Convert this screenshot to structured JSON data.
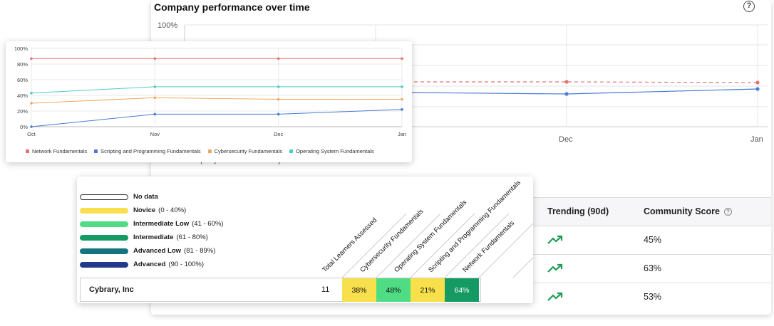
{
  "back_panel": {
    "title": "Company performance over time",
    "y_top_label": "100%",
    "x_labels": [
      "Dec",
      "Jan"
    ],
    "legend_partial": "Company Score   Community Score",
    "table": {
      "headers": {
        "trending": "Trending (90d)",
        "community_score": "Community Score"
      },
      "rows": [
        {
          "community_score": "45%"
        },
        {
          "community_score": "63%"
        },
        {
          "community_score": "53%"
        }
      ]
    }
  },
  "chart_data": {
    "type": "line",
    "categories": [
      "Oct",
      "Nov",
      "Dec",
      "Jan"
    ],
    "ylim": [
      0,
      100
    ],
    "y_ticks": [
      "0%",
      "20%",
      "40%",
      "60%",
      "80%",
      "100%"
    ],
    "series": [
      {
        "name": "Network Fundamentals",
        "color": "#e57373",
        "values": [
          87,
          87,
          87,
          87
        ]
      },
      {
        "name": "Scripting and Programming Fundamentals",
        "color": "#4a7bd0",
        "values": [
          0,
          16,
          16,
          22
        ]
      },
      {
        "name": "Cybersecurity Fundamentals",
        "color": "#f0a860",
        "values": [
          30,
          37,
          35,
          35
        ]
      },
      {
        "name": "Operating System Fundamentals",
        "color": "#4ecdc4",
        "values": [
          43,
          51,
          51,
          51
        ]
      }
    ]
  },
  "heatmap": {
    "key": [
      {
        "name": "No data",
        "range": "",
        "color": "#ffffff"
      },
      {
        "name": "Novice",
        "range": "(0 - 40%)",
        "color": "#f7e04b"
      },
      {
        "name": "Intermediate Low",
        "range": "(41 - 60%)",
        "color": "#4fdc84"
      },
      {
        "name": "Intermediate",
        "range": "(61 - 80%)",
        "color": "#159a63"
      },
      {
        "name": "Advanced Low",
        "range": "(81 - 89%)",
        "color": "#157480"
      },
      {
        "name": "Advanced",
        "range": "(90 - 100%)",
        "color": "#233a8c"
      }
    ],
    "columns": [
      "Total Learners Assessed",
      "Cybersecurity Fundamentals",
      "Operating System Fundamentals",
      "Scripting and Programming Fundamentals",
      "Network Fundamentals"
    ],
    "row": {
      "name": "Cybrary, Inc",
      "total": "11",
      "cells": [
        {
          "value": "38%",
          "color": "#f7e04b"
        },
        {
          "value": "48%",
          "color": "#4fdc84"
        },
        {
          "value": "21%",
          "color": "#f7e04b"
        },
        {
          "value": "64%",
          "color": "#159a63"
        }
      ]
    }
  }
}
